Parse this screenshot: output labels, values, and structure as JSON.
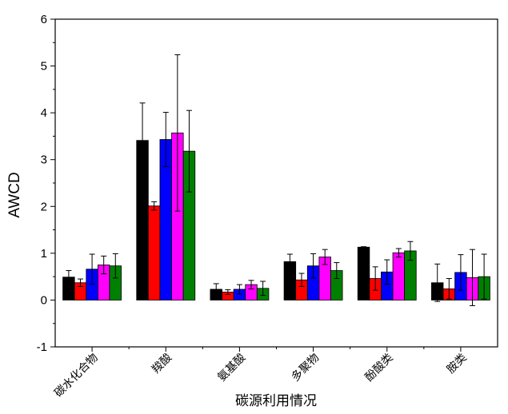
{
  "chart_data": {
    "type": "bar",
    "title": "",
    "xlabel": "碳源利用情况",
    "ylabel": "AWCD",
    "ylim": [
      -1,
      6
    ],
    "yticks": [
      -1,
      0,
      1,
      2,
      3,
      4,
      5,
      6
    ],
    "grid": false,
    "legend": "none",
    "categories": [
      "碳水化合物",
      "羧酸",
      "氨基酸",
      "多聚物",
      "酚酸类",
      "胺类"
    ],
    "series": [
      {
        "color": "#000000",
        "values": [
          0.49,
          3.41,
          0.23,
          0.82,
          1.13,
          0.37
        ],
        "errors": [
          0.14,
          0.8,
          0.12,
          0.16,
          0.01,
          0.4
        ]
      },
      {
        "color": "#ff0000",
        "values": [
          0.37,
          2.01,
          0.17,
          0.43,
          0.46,
          0.24
        ],
        "errors": [
          0.08,
          0.09,
          0.05,
          0.14,
          0.25,
          0.22
        ]
      },
      {
        "color": "#0000ff",
        "values": [
          0.66,
          3.43,
          0.23,
          0.73,
          0.6,
          0.59
        ],
        "errors": [
          0.32,
          0.58,
          0.1,
          0.26,
          0.26,
          0.38
        ]
      },
      {
        "color": "#ff00ff",
        "values": [
          0.75,
          3.57,
          0.33,
          0.92,
          1.01,
          0.48
        ],
        "errors": [
          0.19,
          1.67,
          0.09,
          0.16,
          0.09,
          0.6
        ]
      },
      {
        "color": "#008000",
        "values": [
          0.73,
          3.18,
          0.25,
          0.63,
          1.05,
          0.5
        ],
        "errors": [
          0.26,
          0.87,
          0.15,
          0.17,
          0.2,
          0.48
        ]
      }
    ]
  }
}
